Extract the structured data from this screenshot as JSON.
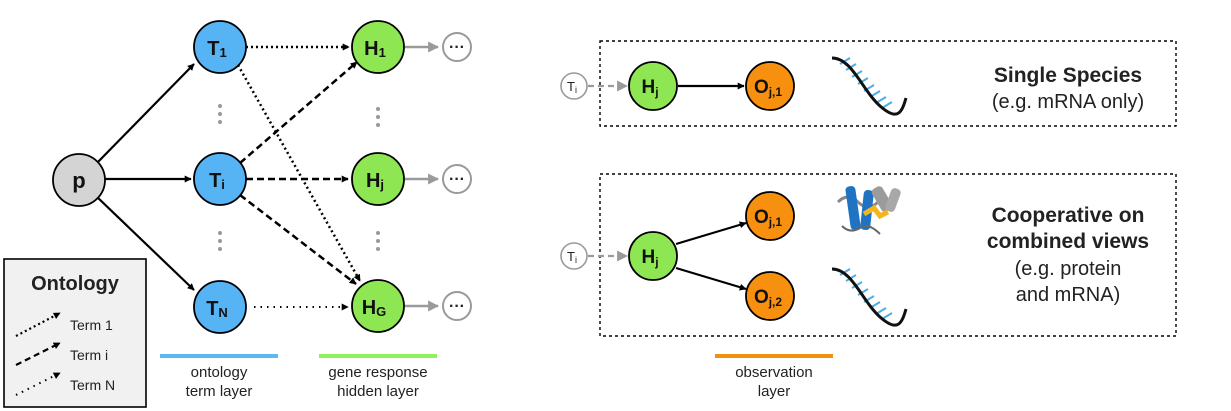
{
  "nodes": {
    "p": "p",
    "t1": {
      "base": "T",
      "sub": "1"
    },
    "ti": {
      "base": "T",
      "sub": "i"
    },
    "tn": {
      "base": "T",
      "sub": "N"
    },
    "h1": {
      "base": "H",
      "sub": "1"
    },
    "hj": {
      "base": "H",
      "sub": "j"
    },
    "hg": {
      "base": "H",
      "sub": "G"
    },
    "ellipsis": "···"
  },
  "legend": {
    "title": "Ontology",
    "term1": "Term 1",
    "termi": "Term i",
    "termN": "Term N"
  },
  "layers": {
    "ontology": [
      "ontology",
      "term layer"
    ],
    "gene": [
      "gene response",
      "hidden layer"
    ],
    "observation": [
      "observation",
      "layer"
    ]
  },
  "single": {
    "title": "Single Species",
    "subtitle": "(e.g. mRNA only)",
    "ti": {
      "base": "T",
      "sub": "i"
    },
    "hj": {
      "base": "H",
      "sub": "j"
    },
    "o": {
      "base": "O",
      "sub": "j,1"
    }
  },
  "cooperative": {
    "title1": "Cooperative on",
    "title2": "combined views",
    "sub1": "(e.g. protein",
    "sub2": "and mRNA)",
    "ti": {
      "base": "T",
      "sub": "i"
    },
    "hj": {
      "base": "H",
      "sub": "j"
    },
    "o1": {
      "base": "O",
      "sub": "j,1"
    },
    "o2": {
      "base": "O",
      "sub": "j,2"
    }
  },
  "colors": {
    "blue": "#56b4f5",
    "green": "#8ee653",
    "orange": "#f7900f",
    "grey": "#d4d4d4",
    "blueBar": "#5ab8f2",
    "greenBar": "#8ef05a",
    "orangeBar": "#f5900f"
  },
  "icons": [
    "mrna-icon",
    "protein-icon"
  ]
}
